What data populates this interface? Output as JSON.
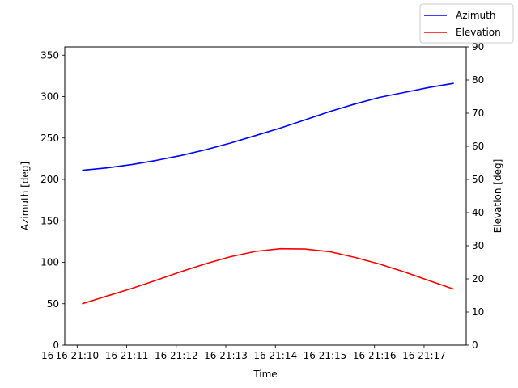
{
  "chart_data": {
    "type": "line",
    "xlabel": "Time",
    "x_tick_labels": [
      "16 21:10",
      "16 21:11",
      "16 21:12",
      "16 21:13",
      "16 21:14",
      "16 21:15",
      "16 21:16",
      "16 21:17"
    ],
    "x_first_tick_prefix": "16",
    "left_axis": {
      "label": "Azimuth [deg]",
      "range": [
        0,
        360
      ],
      "ticks": [
        0,
        50,
        100,
        150,
        200,
        250,
        300,
        350
      ]
    },
    "right_axis": {
      "label": "Elevation [deg]",
      "range": [
        0,
        90
      ],
      "ticks": [
        0,
        10,
        20,
        30,
        40,
        50,
        60,
        70,
        80,
        90
      ]
    },
    "x_minutes_range": [
      -0.25,
      7.85
    ],
    "series": [
      {
        "name": "Azimuth",
        "axis": "left",
        "color": "#0000ff",
        "x_minutes": [
          0.1,
          0.6,
          1.1,
          1.6,
          2.1,
          2.6,
          3.1,
          3.6,
          4.1,
          4.6,
          5.1,
          5.6,
          6.1,
          6.6,
          7.1,
          7.6
        ],
        "values": [
          211,
          214,
          218,
          223,
          229,
          236,
          244,
          253,
          262,
          272,
          282,
          291,
          299,
          305,
          311,
          316
        ]
      },
      {
        "name": "Elevation",
        "axis": "right",
        "color": "#ff0000",
        "x_minutes": [
          0.1,
          0.6,
          1.1,
          1.6,
          2.1,
          2.6,
          3.1,
          3.6,
          4.1,
          4.6,
          5.1,
          5.6,
          6.1,
          6.6,
          7.1,
          7.6
        ],
        "values": [
          12.5,
          14.8,
          17.1,
          19.6,
          22.2,
          24.6,
          26.7,
          28.3,
          29.1,
          29.0,
          28.2,
          26.5,
          24.5,
          22.1,
          19.5,
          16.9
        ]
      }
    ],
    "legend": {
      "location": "top-right",
      "entries": [
        "Azimuth",
        "Elevation"
      ]
    },
    "grid": false
  }
}
